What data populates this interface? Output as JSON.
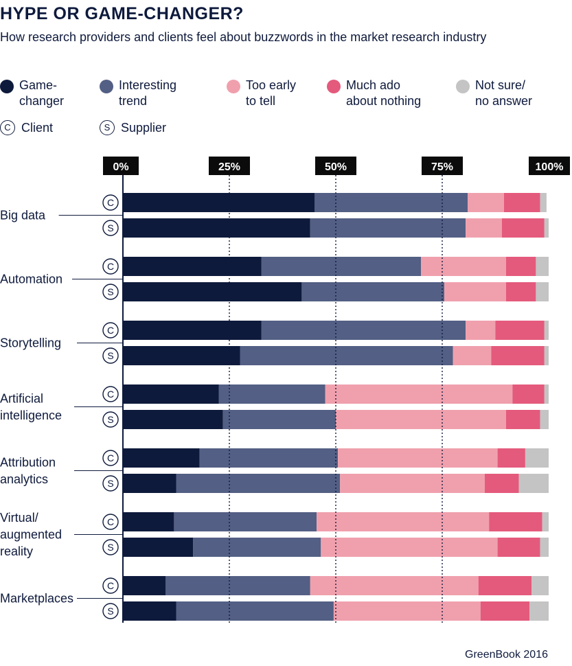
{
  "header": {
    "title": "HYPE OR GAME-CHANGER?",
    "subtitle": "How research providers and clients feel about buzzwords in the market research industry"
  },
  "legend": [
    {
      "line1": "Game-",
      "line2": "changer",
      "color": "#0e1a3c"
    },
    {
      "line1": "Interesting",
      "line2": "trend",
      "color": "#535f84"
    },
    {
      "line1": "Too early",
      "line2": "to tell",
      "color": "#f0a0ad"
    },
    {
      "line1": "Much ado",
      "line2": "about nothing",
      "color": "#e45a7c"
    },
    {
      "line1": "Not sure/",
      "line2": "no answer",
      "color": "#c4c4c4"
    }
  ],
  "respondent_key": [
    {
      "symbol": "C",
      "label": "Client"
    },
    {
      "symbol": "S",
      "label": "Supplier"
    }
  ],
  "source": "GreenBook 2016",
  "chart_data": {
    "type": "bar",
    "orientation": "horizontal",
    "stacked": true,
    "x_ticks": [
      "0%",
      "25%",
      "50%",
      "75%",
      "100%"
    ],
    "xlim": [
      0,
      100
    ],
    "series": [
      "Game-changer",
      "Interesting trend",
      "Too early to tell",
      "Much ado about nothing",
      "Not sure/no answer"
    ],
    "categories": [
      {
        "label_lines": [
          "Big data"
        ],
        "rows": [
          {
            "symbol": "C",
            "values": [
              45,
              36,
              8.5,
              8.5,
              1.5
            ]
          },
          {
            "symbol": "S",
            "values": [
              44,
              36.5,
              8.5,
              10,
              1
            ]
          }
        ]
      },
      {
        "label_lines": [
          "Automation"
        ],
        "rows": [
          {
            "symbol": "C",
            "values": [
              32.5,
              37.5,
              20,
              7,
              3
            ]
          },
          {
            "symbol": "S",
            "values": [
              42,
              33.5,
              14.5,
              7,
              3
            ]
          }
        ]
      },
      {
        "label_lines": [
          "Storytelling"
        ],
        "rows": [
          {
            "symbol": "C",
            "values": [
              32.5,
              48,
              7,
              11.5,
              1
            ]
          },
          {
            "symbol": "S",
            "values": [
              27.5,
              50,
              9,
              12.5,
              1
            ]
          }
        ]
      },
      {
        "label_lines": [
          "Artificial",
          "intelligence"
        ],
        "rows": [
          {
            "symbol": "C",
            "values": [
              22.5,
              25,
              44,
              7.5,
              1
            ]
          },
          {
            "symbol": "S",
            "values": [
              23.5,
              26.5,
              40,
              8,
              2
            ]
          }
        ]
      },
      {
        "label_lines": [
          "Attribution",
          "analytics"
        ],
        "rows": [
          {
            "symbol": "C",
            "values": [
              18,
              32.5,
              37.5,
              6.5,
              5.5
            ]
          },
          {
            "symbol": "S",
            "values": [
              12.5,
              38.5,
              34,
              8,
              7
            ]
          }
        ]
      },
      {
        "label_lines": [
          "Virtual/",
          "augmented",
          "reality"
        ],
        "rows": [
          {
            "symbol": "C",
            "values": [
              12,
              33.5,
              40.5,
              12.5,
              1.5
            ]
          },
          {
            "symbol": "S",
            "values": [
              16.5,
              30,
              41.5,
              10,
              2
            ]
          }
        ]
      },
      {
        "label_lines": [
          "Marketplaces"
        ],
        "rows": [
          {
            "symbol": "C",
            "values": [
              10,
              34,
              39.5,
              12.5,
              4
            ]
          },
          {
            "symbol": "S",
            "values": [
              12.5,
              37,
              34.5,
              11.5,
              4.5
            ]
          }
        ]
      }
    ]
  }
}
